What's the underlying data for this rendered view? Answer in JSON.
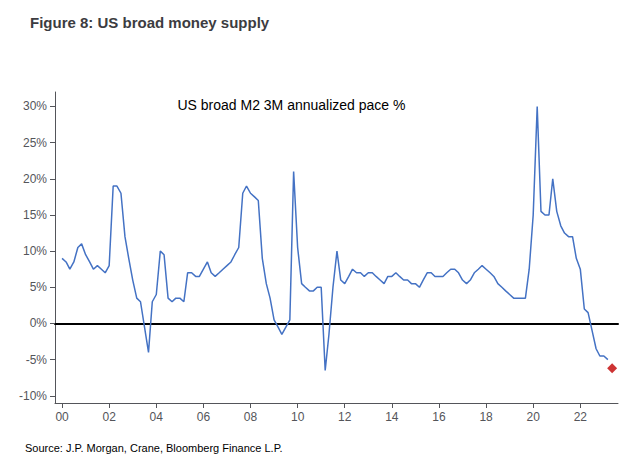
{
  "chart_data": {
    "type": "line",
    "title": "Figure 8: US broad money supply",
    "annotations": [
      "US broad M2 3M annualized pace %",
      "Source: J.P. Morgan, Crane, Bloomberg Finance L.P."
    ],
    "color": "#4472C4",
    "grid": false,
    "xlim": [
      1999.7,
      2023.6
    ],
    "xticks": [
      {
        "value": 2000,
        "label": "00"
      },
      {
        "value": 2002,
        "label": "02"
      },
      {
        "value": 2004,
        "label": "04"
      },
      {
        "value": 2006,
        "label": "06"
      },
      {
        "value": 2008,
        "label": "08"
      },
      {
        "value": 2010,
        "label": "10"
      },
      {
        "value": 2012,
        "label": "12"
      },
      {
        "value": 2014,
        "label": "14"
      },
      {
        "value": 2016,
        "label": "16"
      },
      {
        "value": 2018,
        "label": "18"
      },
      {
        "value": 2020,
        "label": "20"
      },
      {
        "value": 2022,
        "label": "22"
      }
    ],
    "ylim": [
      -11,
      32
    ],
    "yticks": [
      {
        "value": -10,
        "label": "-10%"
      },
      {
        "value": -5,
        "label": "-5%"
      },
      {
        "value": 0,
        "label": "0%"
      },
      {
        "value": 5,
        "label": "5%"
      },
      {
        "value": 10,
        "label": "10%"
      },
      {
        "value": 15,
        "label": "15%"
      },
      {
        "value": 20,
        "label": "20%"
      },
      {
        "value": 25,
        "label": "25%"
      },
      {
        "value": 30,
        "label": "30%"
      }
    ],
    "x": [
      2000.0,
      2000.17,
      2000.33,
      2000.5,
      2000.67,
      2000.83,
      2001.0,
      2001.17,
      2001.33,
      2001.5,
      2001.67,
      2001.83,
      2002.0,
      2002.17,
      2002.33,
      2002.5,
      2002.67,
      2002.83,
      2003.0,
      2003.17,
      2003.33,
      2003.5,
      2003.67,
      2003.83,
      2004.0,
      2004.17,
      2004.33,
      2004.5,
      2004.67,
      2004.83,
      2005.0,
      2005.17,
      2005.33,
      2005.5,
      2005.67,
      2005.83,
      2006.0,
      2006.17,
      2006.33,
      2006.5,
      2006.67,
      2006.83,
      2007.0,
      2007.17,
      2007.33,
      2007.5,
      2007.67,
      2007.83,
      2008.0,
      2008.17,
      2008.33,
      2008.5,
      2008.67,
      2008.83,
      2009.0,
      2009.17,
      2009.33,
      2009.5,
      2009.67,
      2009.83,
      2010.0,
      2010.17,
      2010.33,
      2010.5,
      2010.67,
      2010.83,
      2011.0,
      2011.17,
      2011.33,
      2011.5,
      2011.67,
      2011.83,
      2012.0,
      2012.17,
      2012.33,
      2012.5,
      2012.67,
      2012.83,
      2013.0,
      2013.17,
      2013.33,
      2013.5,
      2013.67,
      2013.83,
      2014.0,
      2014.17,
      2014.33,
      2014.5,
      2014.67,
      2014.83,
      2015.0,
      2015.17,
      2015.33,
      2015.5,
      2015.67,
      2015.83,
      2016.0,
      2016.17,
      2016.33,
      2016.5,
      2016.67,
      2016.83,
      2017.0,
      2017.17,
      2017.33,
      2017.5,
      2017.67,
      2017.83,
      2018.0,
      2018.17,
      2018.33,
      2018.5,
      2018.67,
      2018.83,
      2019.0,
      2019.17,
      2019.33,
      2019.5,
      2019.67,
      2019.83,
      2020.0,
      2020.17,
      2020.33,
      2020.5,
      2020.67,
      2020.83,
      2021.0,
      2021.17,
      2021.33,
      2021.5,
      2021.67,
      2021.83,
      2022.0,
      2022.17,
      2022.33,
      2022.5,
      2022.67,
      2022.83,
      2023.0,
      2023.17
    ],
    "values": [
      9.0,
      8.5,
      7.5,
      8.5,
      10.5,
      11.0,
      9.5,
      8.5,
      7.5,
      8.0,
      7.5,
      7.0,
      8.0,
      19.0,
      19.0,
      18.0,
      12.0,
      9.0,
      6.0,
      3.5,
      3.0,
      -0.5,
      -4.0,
      3.0,
      4.0,
      10.0,
      9.5,
      3.5,
      3.0,
      3.5,
      3.5,
      3.0,
      7.0,
      7.0,
      6.5,
      6.5,
      7.5,
      8.5,
      7.0,
      6.5,
      7.0,
      7.5,
      8.0,
      8.5,
      9.5,
      10.5,
      18.0,
      19.0,
      18.0,
      17.5,
      17.0,
      9.0,
      5.5,
      3.5,
      0.5,
      -0.5,
      -1.5,
      -0.5,
      0.5,
      21.0,
      10.5,
      5.5,
      5.0,
      4.5,
      4.5,
      5.0,
      5.0,
      -6.5,
      -1.5,
      5.0,
      10.0,
      6.0,
      5.5,
      6.5,
      7.5,
      7.0,
      7.0,
      6.5,
      7.0,
      7.0,
      6.5,
      6.0,
      5.5,
      6.5,
      6.5,
      7.0,
      6.5,
      6.0,
      6.0,
      5.5,
      5.5,
      5.0,
      6.0,
      7.0,
      7.0,
      6.5,
      6.5,
      6.5,
      7.0,
      7.5,
      7.5,
      7.0,
      6.0,
      5.5,
      6.0,
      7.0,
      7.5,
      8.0,
      7.5,
      7.0,
      6.5,
      5.5,
      5.0,
      4.5,
      4.0,
      3.5,
      3.5,
      3.5,
      3.5,
      7.5,
      15.0,
      30.0,
      15.5,
      15.0,
      15.0,
      20.0,
      15.5,
      13.5,
      12.5,
      12.0,
      12.0,
      9.0,
      7.5,
      2.0,
      1.5,
      -1.0,
      -3.5,
      -4.5,
      -4.5,
      -5.0
    ],
    "marker_point": {
      "x": 2023.35,
      "value": -6.2,
      "color": "#C00000",
      "marker": "diamond"
    }
  }
}
